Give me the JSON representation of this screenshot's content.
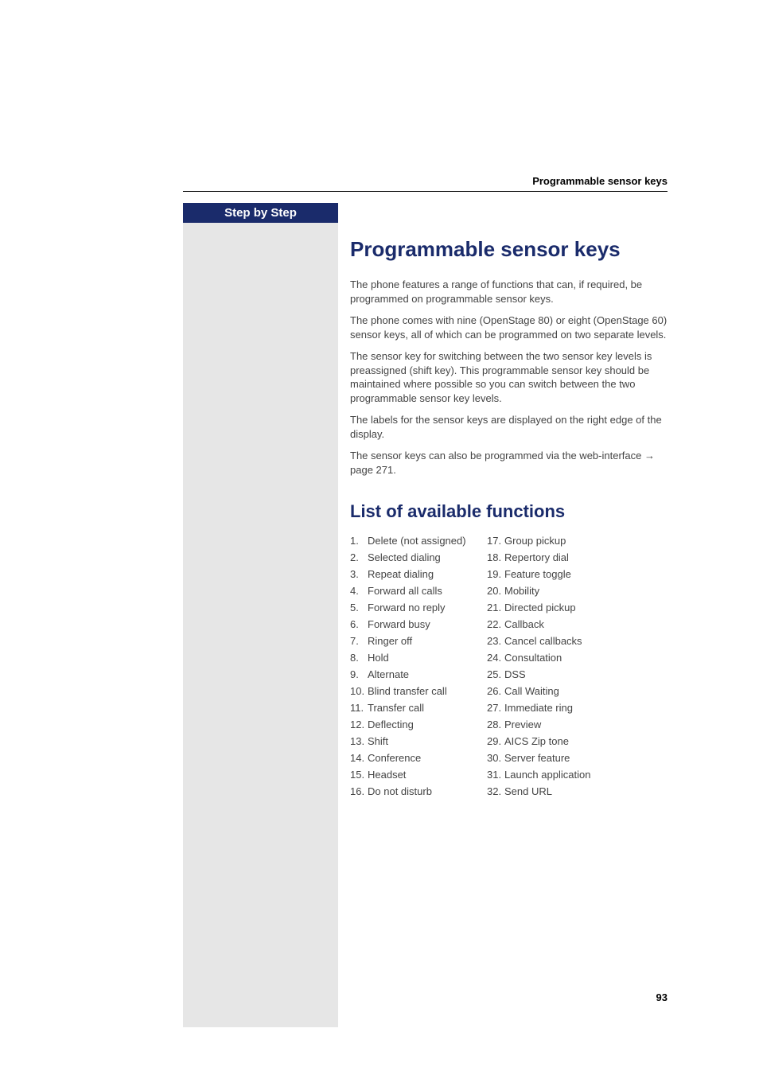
{
  "header": {
    "section_label": "Programmable sensor keys"
  },
  "sidebar": {
    "title": "Step by Step"
  },
  "main": {
    "title": "Programmable sensor keys",
    "paragraphs": [
      "The phone features a range of functions that can, if required, be programmed on programmable sensor keys.",
      "The phone comes with nine (OpenStage 80) or eight (OpenStage 60) sensor keys, all of which can be programmed on two separate levels.",
      "The sensor key for switching between the two sensor key levels is preassigned (shift key). This programmable sensor key should be maintained where possible so you can switch between the two programmable sensor key levels.",
      "The labels for the sensor keys are displayed on the right edge of the display.",
      "The sensor keys can also be programmed via the web-interface → page 271."
    ],
    "subheading": "List of available functions",
    "functions_left": [
      {
        "n": "1.",
        "label": "Delete (not assigned)"
      },
      {
        "n": "2.",
        "label": "Selected dialing"
      },
      {
        "n": "3.",
        "label": "Repeat dialing"
      },
      {
        "n": "4.",
        "label": "Forward all calls"
      },
      {
        "n": "5.",
        "label": "Forward no reply"
      },
      {
        "n": "6.",
        "label": "Forward busy"
      },
      {
        "n": "7.",
        "label": "Ringer off"
      },
      {
        "n": "8.",
        "label": "Hold"
      },
      {
        "n": "9.",
        "label": "Alternate"
      },
      {
        "n": "10.",
        "label": "Blind transfer call"
      },
      {
        "n": "11.",
        "label": "Transfer call"
      },
      {
        "n": "12.",
        "label": "Deflecting"
      },
      {
        "n": "13.",
        "label": "Shift"
      },
      {
        "n": "14.",
        "label": "Conference"
      },
      {
        "n": "15.",
        "label": "Headset"
      },
      {
        "n": "16.",
        "label": "Do not disturb"
      }
    ],
    "functions_right": [
      {
        "n": "17.",
        "label": "Group pickup"
      },
      {
        "n": "18.",
        "label": "Repertory dial"
      },
      {
        "n": "19.",
        "label": "Feature toggle"
      },
      {
        "n": "20.",
        "label": "Mobility"
      },
      {
        "n": "21.",
        "label": "Directed pickup"
      },
      {
        "n": "22.",
        "label": "Callback"
      },
      {
        "n": "23.",
        "label": "Cancel callbacks"
      },
      {
        "n": "24.",
        "label": "Consultation"
      },
      {
        "n": "25.",
        "label": "DSS"
      },
      {
        "n": "26.",
        "label": "Call Waiting"
      },
      {
        "n": "27.",
        "label": "Immediate ring"
      },
      {
        "n": "28.",
        "label": "Preview"
      },
      {
        "n": "29.",
        "label": "AICS Zip tone"
      },
      {
        "n": "30.",
        "label": "Server feature"
      },
      {
        "n": "31.",
        "label": "Launch application"
      },
      {
        "n": "32.",
        "label": "Send URL"
      }
    ]
  },
  "footer": {
    "page_number": "93"
  },
  "colors": {
    "brand_blue": "#1a2b6b",
    "sidebar_grey": "#e6e6e6",
    "text_body": "#444444",
    "background": "#ffffff"
  },
  "typography": {
    "title_fontsize": 26,
    "subtitle_fontsize": 22,
    "body_fontsize": 13,
    "header_label_fontsize": 13,
    "page_number_fontsize": 13
  }
}
